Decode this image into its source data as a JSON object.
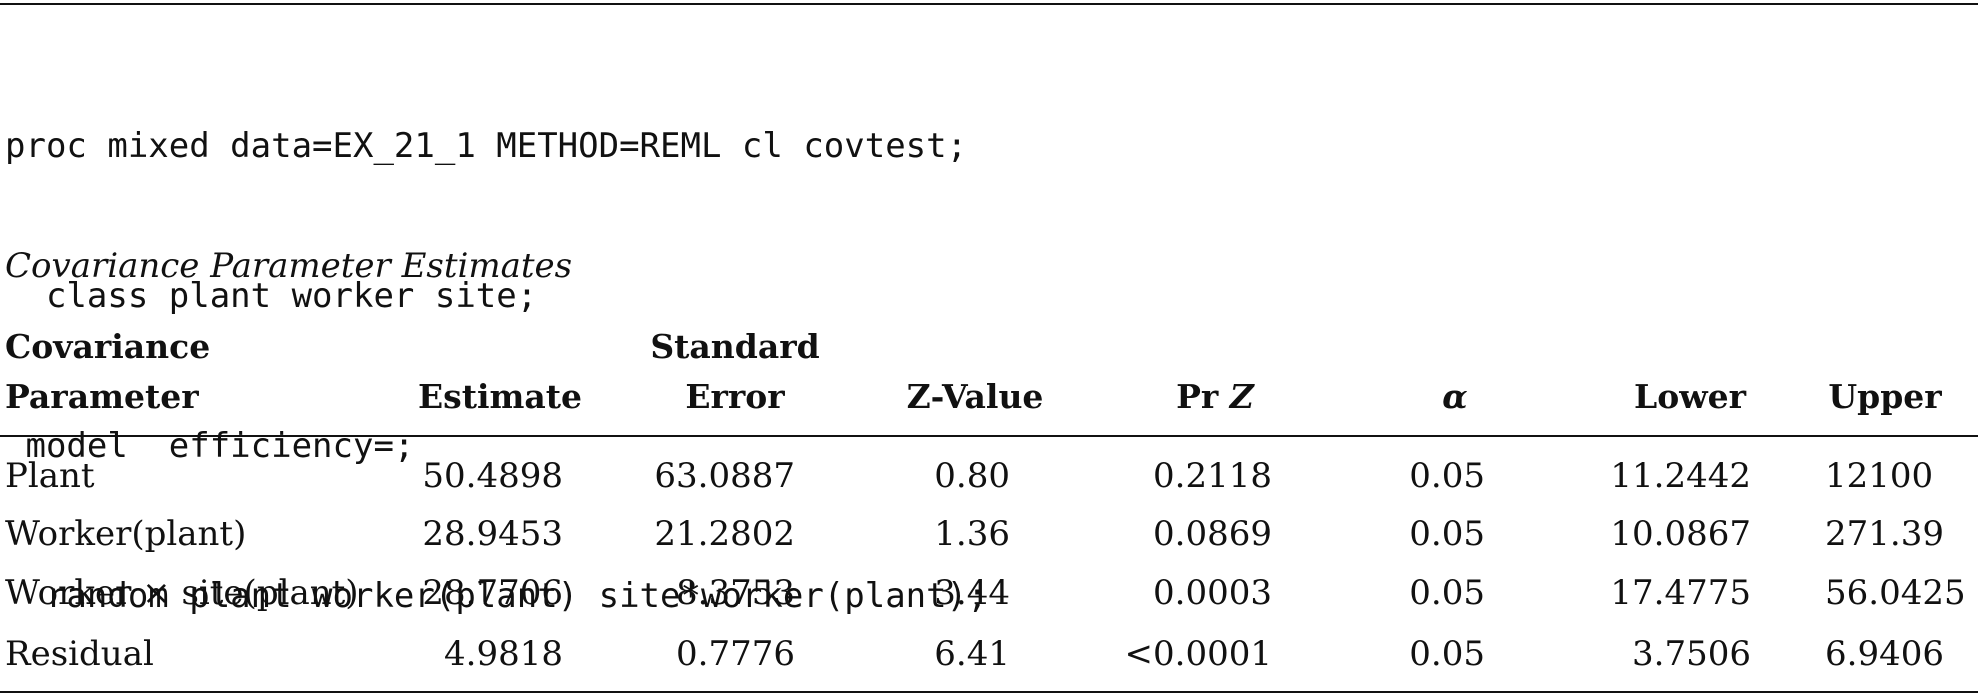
{
  "code": {
    "lines": [
      "proc mixed data=EX_21_1 METHOD=REML cl covtest;",
      "  class plant worker site;",
      " model  efficiency=;",
      "  random plant worker(plant) site*worker(plant);"
    ]
  },
  "caption": "Covariance Parameter Estimates",
  "table": {
    "headers": {
      "parameter_line1": "Covariance",
      "parameter_line2": "Parameter",
      "estimate": "Estimate",
      "stderr_line1": "Standard",
      "stderr_line2": "Error",
      "zvalue": "Z-Value",
      "prz_prefix": "Pr ",
      "prz_italic": "Z",
      "alpha": "α",
      "lower": "Lower",
      "upper": "Upper"
    },
    "rows": [
      [
        "Plant",
        "50.4898",
        "63.0887",
        "0.80",
        "0.2118",
        "0.05",
        "11.2442",
        "12100"
      ],
      [
        "Worker(plant)",
        "28.9453",
        "21.2802",
        "1.36",
        "0.0869",
        "0.05",
        "10.0867",
        "271.39"
      ],
      [
        "Worker × site(plant)",
        "28.7706",
        "8.3753",
        "3.44",
        "0.0003",
        "0.05",
        "17.4775",
        "56.0425"
      ],
      [
        "Residual",
        "4.9818",
        "0.7776",
        "6.41",
        "<0.0001",
        "0.05",
        "3.7506",
        "6.9406"
      ]
    ]
  }
}
